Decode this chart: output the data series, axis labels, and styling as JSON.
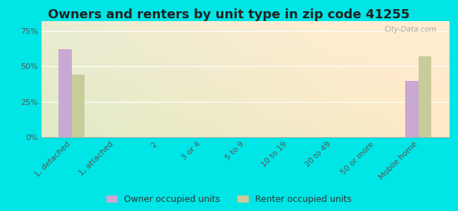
{
  "title": "Owners and renters by unit type in zip code 41255",
  "categories": [
    "1, detached",
    "1, attached",
    "2",
    "3 or 4",
    "5 to 9",
    "10 to 19",
    "20 to 49",
    "50 or more",
    "Mobile home"
  ],
  "owner_values": [
    62,
    0,
    0,
    0,
    0,
    0,
    0,
    0,
    40
  ],
  "renter_values": [
    44,
    0,
    0,
    0,
    0,
    0,
    0,
    0,
    57
  ],
  "owner_color": "#c9a8d4",
  "renter_color": "#c8cc9a",
  "yticks": [
    0,
    25,
    50,
    75
  ],
  "ylim": [
    0,
    82
  ],
  "outer_background": "#00e5e5",
  "watermark": "City-Data.com",
  "legend_owner": "Owner occupied units",
  "legend_renter": "Renter occupied units",
  "title_fontsize": 13,
  "tick_fontsize": 8,
  "legend_fontsize": 9
}
